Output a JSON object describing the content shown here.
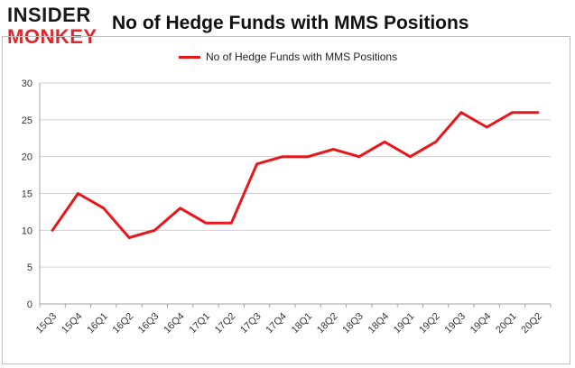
{
  "logo": {
    "line1": "INSIDER",
    "line2": "MONKEY"
  },
  "chart_data": {
    "type": "line",
    "title": "No of Hedge Funds with MMS Positions",
    "xlabel": "",
    "ylabel": "",
    "categories": [
      "15Q3",
      "15Q4",
      "16Q1",
      "16Q2",
      "16Q3",
      "16Q4",
      "17Q1",
      "17Q2",
      "17Q3",
      "17Q4",
      "18Q1",
      "18Q2",
      "18Q3",
      "18Q4",
      "19Q1",
      "19Q2",
      "19Q3",
      "19Q4",
      "20Q1",
      "20Q2"
    ],
    "series": [
      {
        "name": "No of Hedge Funds with MMS Positions",
        "color": "#e8161b",
        "values": [
          10,
          15,
          13,
          9,
          10,
          13,
          11,
          11,
          19,
          20,
          20,
          21,
          20,
          22,
          20,
          22,
          26,
          24,
          26,
          26
        ]
      }
    ],
    "ylim": [
      0,
      30
    ],
    "yticks": [
      0,
      5,
      10,
      15,
      20,
      25,
      30
    ],
    "grid": true,
    "legend_position": "top-center"
  }
}
